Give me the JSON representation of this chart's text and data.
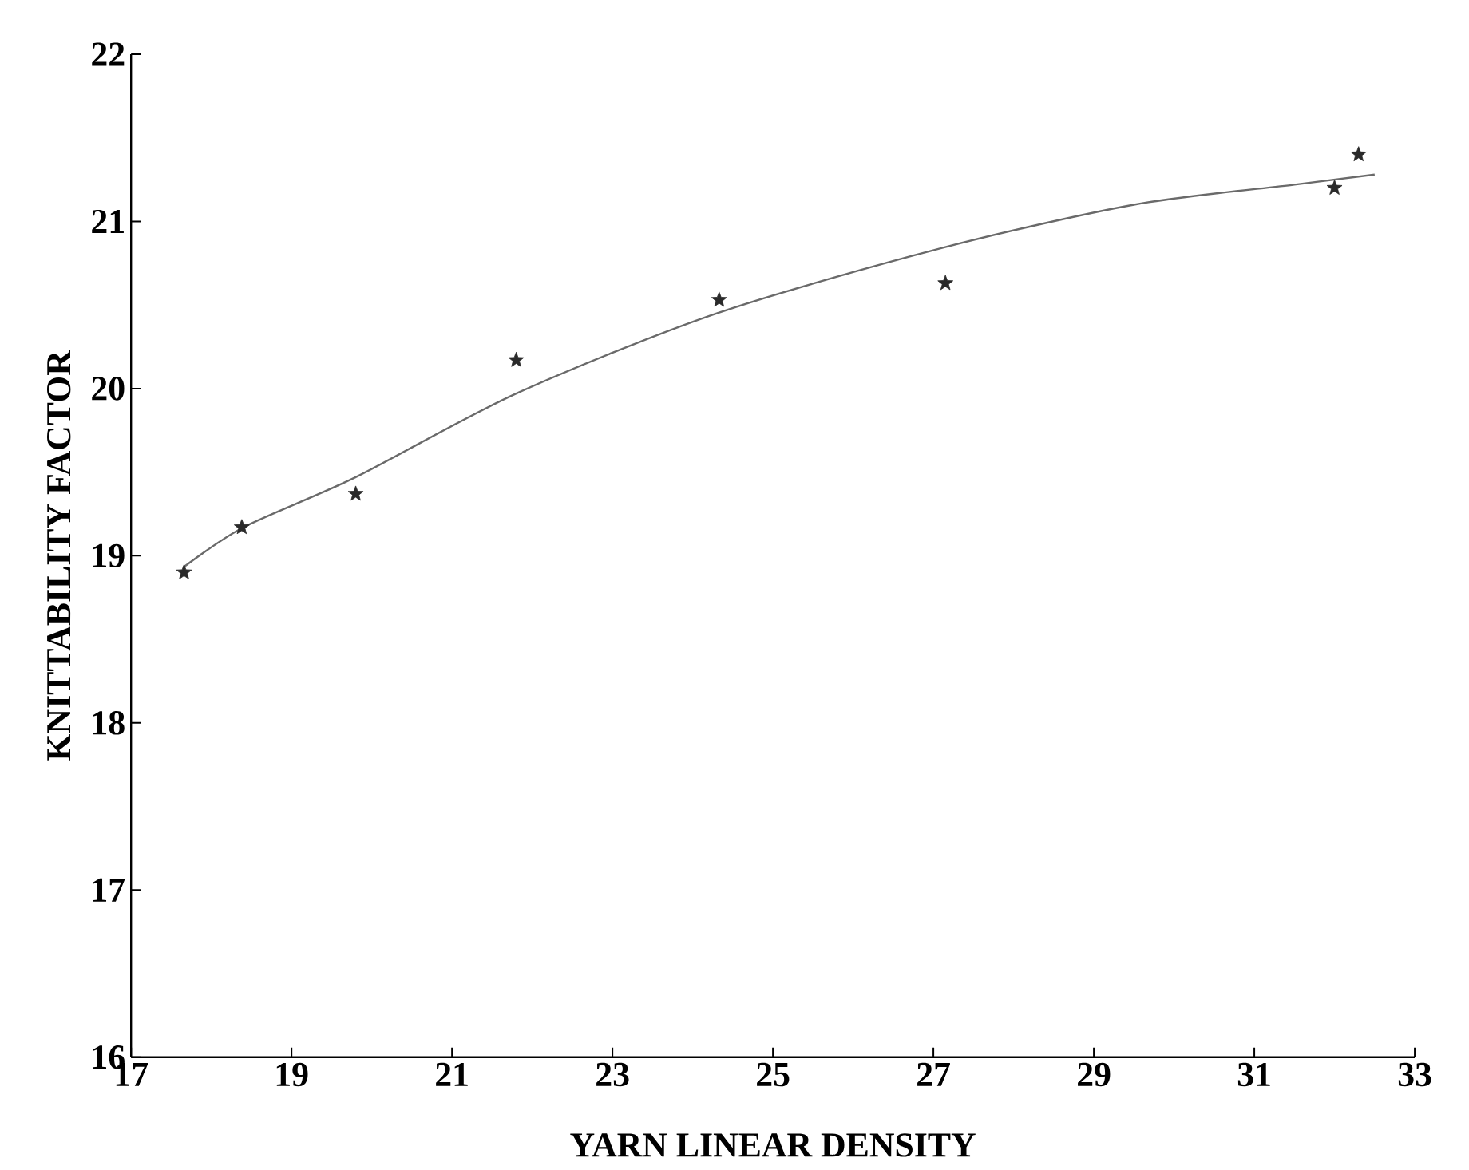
{
  "chart_data": {
    "type": "scatter",
    "xlabel": "YARN LINEAR DENSITY",
    "ylabel": "KNITTABILITY FACTOR",
    "xlim": [
      17,
      33
    ],
    "ylim": [
      16,
      22
    ],
    "xticks": [
      17,
      19,
      21,
      23,
      25,
      27,
      29,
      31,
      33
    ],
    "yticks": [
      16,
      17,
      18,
      19,
      20,
      21,
      22
    ],
    "grid": false,
    "series": [
      {
        "color": "#2a2a2a",
        "marker": "star",
        "x": [
          17.66,
          18.38,
          19.8,
          21.8,
          24.33,
          27.15,
          32.0,
          32.3
        ],
        "values": [
          18.9,
          19.17,
          19.37,
          20.17,
          20.53,
          20.63,
          21.2,
          21.4
        ]
      },
      {
        "type": "line",
        "color": "#6a6a6a",
        "marker": "none",
        "line_style": "solid",
        "x": [
          17.65,
          18.4,
          19.8,
          21.8,
          24.3,
          27.1,
          29.5,
          31.5,
          32.5
        ],
        "values": [
          18.93,
          19.17,
          19.47,
          19.97,
          20.45,
          20.84,
          21.1,
          21.22,
          21.28
        ]
      }
    ]
  }
}
